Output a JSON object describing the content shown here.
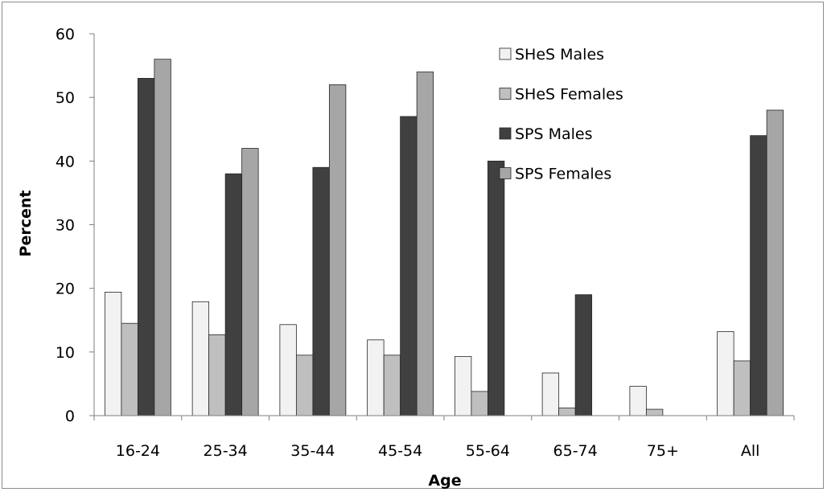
{
  "chart_data": {
    "type": "bar",
    "xlabel": "Age",
    "ylabel": "Percent",
    "ylim": [
      0,
      60
    ],
    "yticks": [
      0,
      10,
      20,
      30,
      40,
      50,
      60
    ],
    "grid": false,
    "legend_position": "top-right",
    "categories": [
      "16-24",
      "25-34",
      "35-44",
      "45-54",
      "55-64",
      "65-74",
      "75+",
      "All"
    ],
    "series": [
      {
        "name": "SHeS Males",
        "color": "#f2f2f2",
        "values": [
          19.4,
          17.9,
          14.3,
          11.9,
          9.3,
          6.7,
          4.6,
          13.2
        ]
      },
      {
        "name": "SHeS Females",
        "color": "#bfbfbf",
        "values": [
          14.5,
          12.7,
          9.5,
          9.5,
          3.8,
          1.2,
          1.0,
          8.6
        ]
      },
      {
        "name": "SPS Males",
        "color": "#404040",
        "values": [
          53,
          38,
          39,
          47,
          40,
          19,
          null,
          44
        ]
      },
      {
        "name": "SPS Females",
        "color": "#a6a6a6",
        "values": [
          56,
          42,
          52,
          54,
          null,
          null,
          null,
          48
        ]
      }
    ]
  }
}
